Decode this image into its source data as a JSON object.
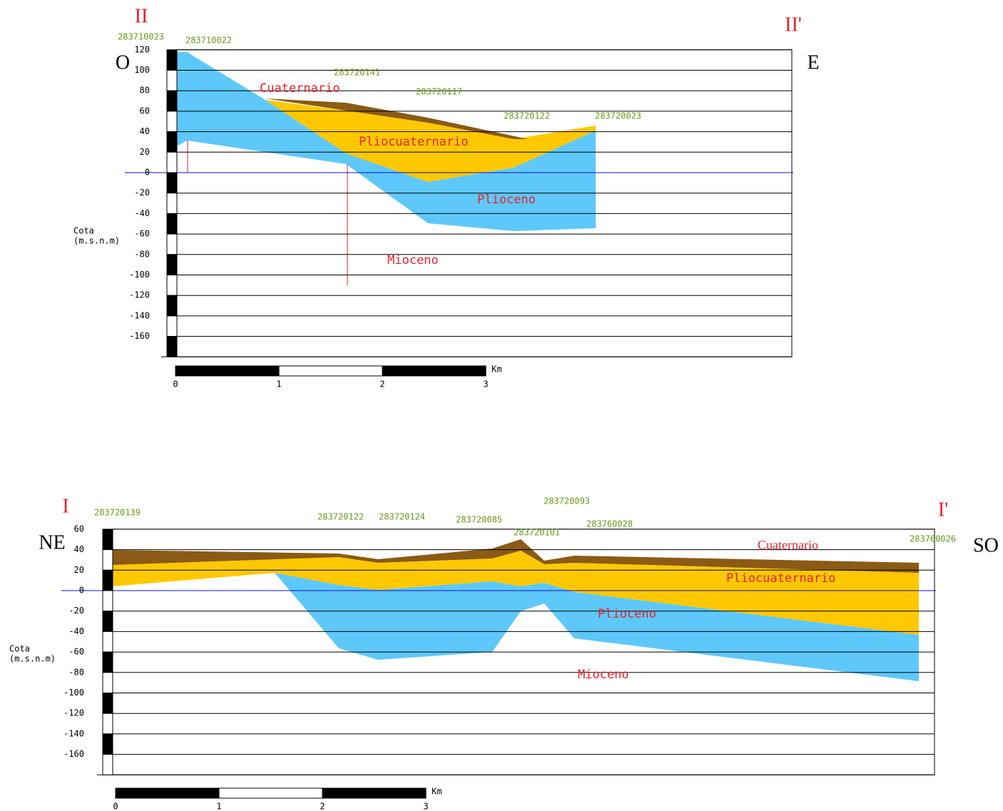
{
  "sections": [
    {
      "start": "II",
      "end": "II'",
      "left": "O",
      "right": "E",
      "wells": [
        "283710023",
        "283710022",
        "283720141",
        "283720117",
        "283720122",
        "283720023"
      ],
      "units": [
        "Cuaternario",
        "Pliocuaternario",
        "Plioceno",
        "Mioceno"
      ],
      "axis_title": "Cota",
      "axis_unit": "(m.s.n.m)",
      "yticks": [
        120,
        100,
        80,
        60,
        40,
        20,
        0,
        -20,
        -40,
        -60,
        -80,
        -100,
        -120,
        -140,
        -160
      ],
      "scale_ticks": [
        0,
        1,
        2,
        3
      ],
      "scale_unit": "Km"
    },
    {
      "start": "I",
      "end": "I'",
      "left": "NE",
      "right": "SO",
      "wells": [
        "283720139",
        "283720122",
        "283720124",
        "283720085",
        "283720093",
        "283720101",
        "283760028",
        "283760026"
      ],
      "units": [
        "Cuaternario",
        "Pliocuaternario",
        "Plioceno",
        "Mioceno"
      ],
      "axis_title": "Cota",
      "axis_unit": "(m.s.n.m)",
      "yticks": [
        60,
        40,
        20,
        0,
        -20,
        -40,
        -60,
        -80,
        -100,
        -120,
        -140,
        -160
      ],
      "scale_ticks": [
        0,
        1,
        2,
        3
      ],
      "scale_unit": "Km"
    }
  ]
}
